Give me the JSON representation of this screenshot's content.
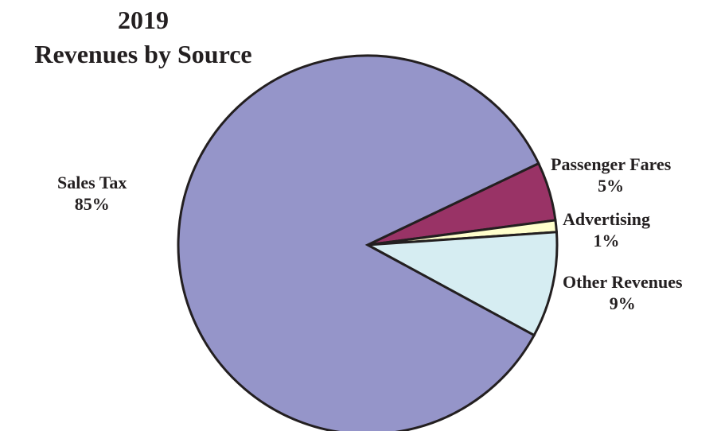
{
  "chart_data": {
    "type": "pie",
    "title": [
      "2019",
      "Revenues by Source"
    ],
    "slices": [
      {
        "label": "Passenger Fares",
        "value": 5,
        "value_label": "5%",
        "color": "#993366"
      },
      {
        "label": "Advertising",
        "value": 1,
        "value_label": "1%",
        "color": "#ffffcc"
      },
      {
        "label": "Other Revenues",
        "value": 9,
        "value_label": "9%",
        "color": "#d6edf2"
      },
      {
        "label": "Sales Tax",
        "value": 85,
        "value_label": "85%",
        "color": "#9595c9"
      }
    ],
    "start_direction": "upper-right",
    "direction": "clockwise",
    "legend": "none",
    "labels": "outside, bold"
  }
}
